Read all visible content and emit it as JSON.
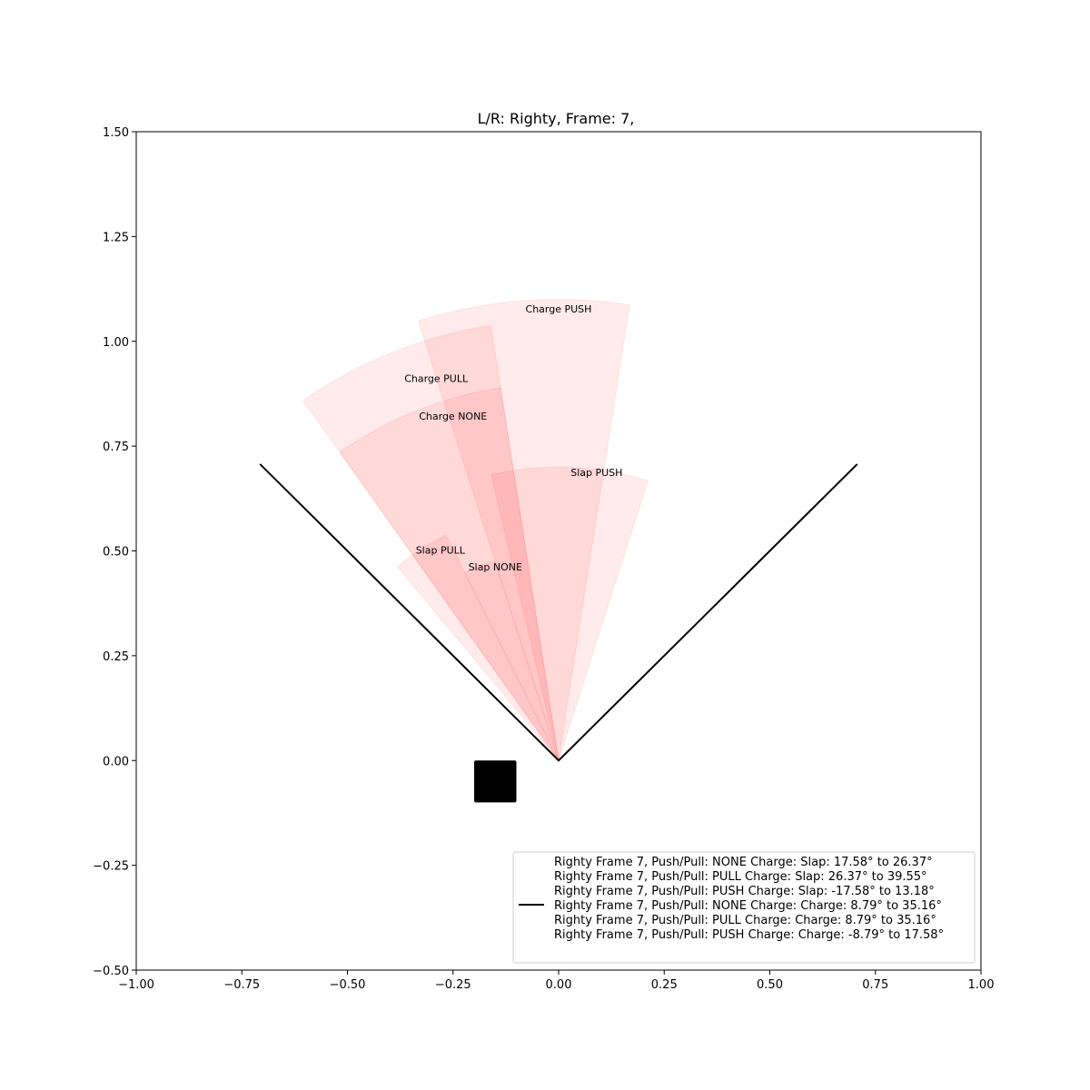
{
  "chart_data": {
    "type": "wedge",
    "title": "L/R: Righty, Frame: 7,",
    "xlabel": "",
    "ylabel": "",
    "xlim": [
      -1.0,
      1.0
    ],
    "ylim": [
      -0.5,
      1.5
    ],
    "x_ticks": [
      "−1.00",
      "−0.75",
      "−0.50",
      "−0.25",
      "0.00",
      "0.25",
      "0.50",
      "0.75",
      "1.00"
    ],
    "x_tick_values": [
      -1.0,
      -0.75,
      -0.5,
      -0.25,
      0.0,
      0.25,
      0.5,
      0.75,
      1.0
    ],
    "y_ticks": [
      "−0.50",
      "−0.25",
      "0.00",
      "0.25",
      "0.50",
      "0.75",
      "1.00",
      "1.25",
      "1.50"
    ],
    "y_tick_values": [
      -0.5,
      -0.25,
      0.0,
      0.25,
      0.5,
      0.75,
      1.0,
      1.25,
      1.5
    ],
    "grid": false,
    "fill_color": "#ff0000",
    "origin": [
      0,
      0
    ],
    "boundary_line": {
      "points": [
        [
          -0.707,
          0.707
        ],
        [
          0,
          0
        ],
        [
          0.707,
          0.707
        ]
      ],
      "color": "#000000"
    },
    "wedges": [
      {
        "label": "Slap NONE",
        "from_deg": 17.58,
        "to_deg": 26.37,
        "radius": 0.5,
        "label_at": [
          -0.15,
          0.46
        ]
      },
      {
        "label": "Slap PULL",
        "from_deg": 26.37,
        "to_deg": 39.55,
        "radius": 0.6,
        "label_at": [
          -0.28,
          0.5
        ]
      },
      {
        "label": "Slap PUSH",
        "from_deg": -17.58,
        "to_deg": 13.18,
        "radius": 0.7,
        "label_at": [
          0.09,
          0.685
        ]
      },
      {
        "label": "Charge NONE",
        "from_deg": 8.79,
        "to_deg": 35.16,
        "radius": 0.9,
        "label_at": [
          -0.25,
          0.82
        ]
      },
      {
        "label": "Charge PULL",
        "from_deg": 8.79,
        "to_deg": 35.16,
        "radius": 1.05,
        "label_at": [
          -0.29,
          0.91
        ]
      },
      {
        "label": "Charge PUSH",
        "from_deg": -8.79,
        "to_deg": 17.58,
        "radius": 1.1,
        "label_at": [
          0.0,
          1.075
        ]
      }
    ],
    "square_marker": {
      "center": [
        -0.15,
        -0.05
      ],
      "size": 0.1,
      "color": "#000000"
    },
    "legend": {
      "position": "lower-right",
      "entries": [
        "Righty Frame 7, Push/Pull: NONE Charge: Slap: 17.58° to 26.37°",
        "Righty Frame 7, Push/Pull: PULL Charge: Slap: 26.37° to 39.55°",
        "Righty Frame 7, Push/Pull: PUSH Charge: Slap: -17.58° to 13.18°",
        "Righty Frame 7, Push/Pull: NONE Charge: Charge: 8.79° to 35.16°",
        "Righty Frame 7, Push/Pull: PULL Charge: Charge: 8.79° to 35.16°",
        "Righty Frame 7, Push/Pull: PUSH Charge: Charge: -8.79° to 17.58°"
      ],
      "line_entry_index": 3
    }
  }
}
